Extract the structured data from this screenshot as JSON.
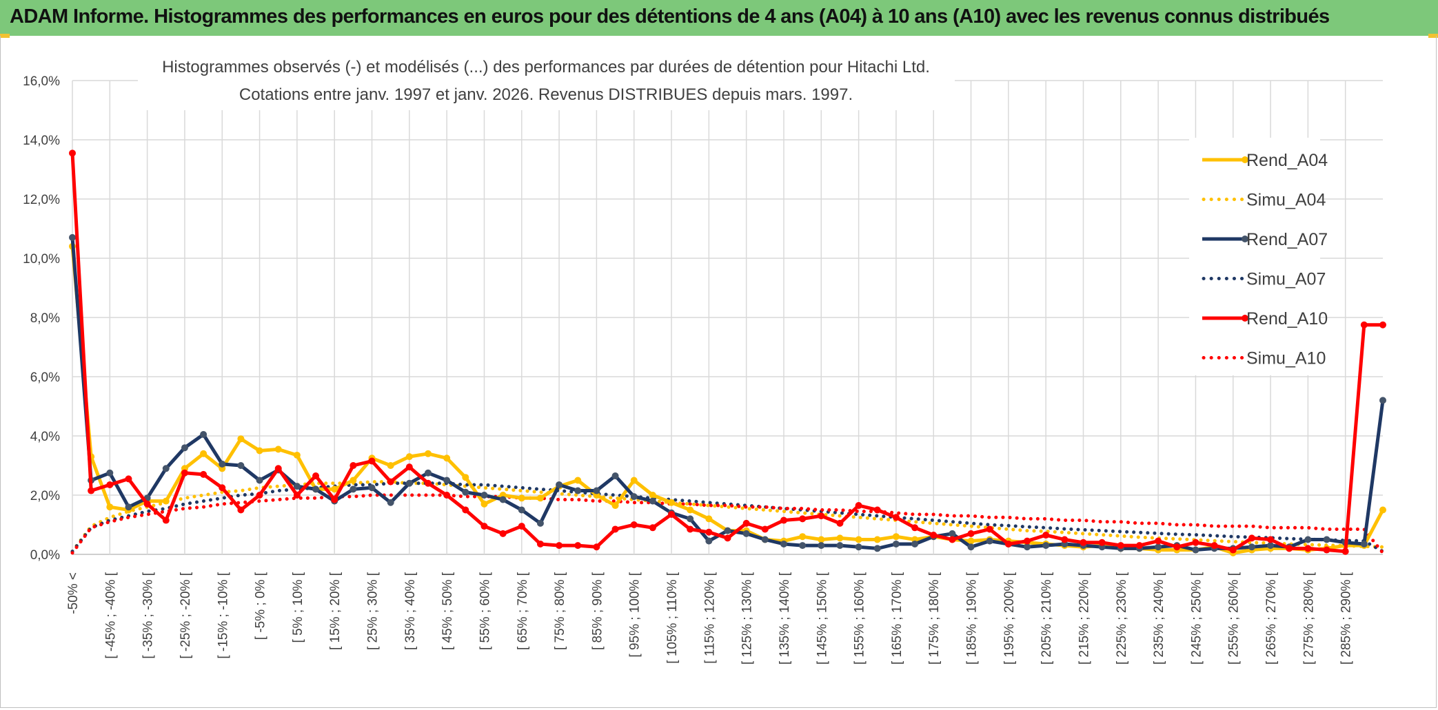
{
  "banner": {
    "title": "ADAM Informe. Histogrammes des performances en euros pour des détentions de 4 ans (A04) à 10 ans (A10) avec les revenus connus distribués"
  },
  "chart_data": {
    "type": "line",
    "title_line1": "Histogrammes observés (-) et modélisés (...) des performances par durées de détention pour Hitachi Ltd.",
    "title_line2": "Cotations entre janv. 1997 et janv. 2026. Revenus DISTRIBUES depuis mars. 1997.",
    "ylim": [
      0,
      16
    ],
    "y_ticks": [
      "0,0%",
      "2,0%",
      "4,0%",
      "6,0%",
      "8,0%",
      "10,0%",
      "12,0%",
      "14,0%",
      "16,0%"
    ],
    "x_tick_labels": [
      "-50% <",
      "[ -45% ; -40% [",
      "[ -35% ; -30% [",
      "[ -25% ; -20% [",
      "[ -15% ; -10% [",
      "[ -5% ; 0% [",
      "[ 5% ; 10% [",
      "[ 15% ; 20% [",
      "[ 25% ; 30% [",
      "[ 35% ; 40% [",
      "[ 45% ; 50% [",
      "[ 55% ; 60% [",
      "[ 65% ; 70% [",
      "[ 75% ; 80% [",
      "[ 85% ; 90% [",
      "[ 95% ; 100% [",
      "[ 105% ; 110% [",
      "[ 115% ; 120% [",
      "[ 125% ; 130% [",
      "[ 135% ; 140% [",
      "[ 145% ; 150% [",
      "[ 155% ; 160% [",
      "[ 165% ; 170% [",
      "[ 175% ; 180% [",
      "[ 185% ; 190% [",
      "[ 195% ; 200% [",
      "[ 205% ; 210% [",
      "[ 215% ; 220% [",
      "[ 225% ; 230% [",
      "[ 235% ; 240% [",
      "[ 245% ; 250% [",
      "[ 255% ; 260% [",
      "[ 265% ; 270% [",
      "[ 275% ; 280% [",
      "[ 285% ; 290% ["
    ],
    "x_label_positions": [
      0,
      2,
      4,
      6,
      8,
      10,
      12,
      14,
      16,
      18,
      20,
      22,
      24,
      26,
      28,
      30,
      32,
      34,
      36,
      38,
      40,
      42,
      44,
      46,
      48,
      50,
      52,
      54,
      56,
      58,
      60,
      62,
      64,
      66,
      68
    ],
    "n_points": 71,
    "series": [
      {
        "name": "Rend_A04",
        "color": "#ffc000",
        "style": "solid",
        "markers": true,
        "values": [
          10.4,
          3.3,
          1.6,
          1.5,
          1.8,
          1.8,
          2.9,
          3.4,
          2.9,
          3.9,
          3.5,
          3.55,
          3.35,
          2.2,
          2.2,
          2.5,
          3.25,
          3.0,
          3.3,
          3.4,
          3.25,
          2.6,
          1.7,
          2.0,
          1.9,
          1.9,
          2.3,
          2.5,
          2.0,
          1.65,
          2.5,
          2.0,
          1.75,
          1.5,
          1.2,
          0.8,
          0.8,
          0.5,
          0.45,
          0.6,
          0.5,
          0.55,
          0.5,
          0.5,
          0.6,
          0.5,
          0.6,
          0.5,
          0.45,
          0.5,
          0.45,
          0.4,
          0.35,
          0.3,
          0.25,
          0.3,
          0.2,
          0.2,
          0.15,
          0.15,
          0.15,
          0.25,
          0.05,
          0.15,
          0.2,
          0.2,
          0.15,
          0.2,
          0.3,
          0.3,
          1.5
        ]
      },
      {
        "name": "Simu_A04",
        "color": "#ffc000",
        "style": "dotted",
        "markers": false,
        "values": [
          0.1,
          0.95,
          1.25,
          1.45,
          1.6,
          1.75,
          1.9,
          2.0,
          2.1,
          2.15,
          2.25,
          2.3,
          2.35,
          2.4,
          2.4,
          2.4,
          2.45,
          2.45,
          2.4,
          2.4,
          2.35,
          2.3,
          2.25,
          2.2,
          2.15,
          2.1,
          2.05,
          2.0,
          1.95,
          1.9,
          1.85,
          1.8,
          1.75,
          1.7,
          1.65,
          1.6,
          1.55,
          1.5,
          1.45,
          1.4,
          1.35,
          1.3,
          1.25,
          1.2,
          1.15,
          1.1,
          1.05,
          1.0,
          0.95,
          0.9,
          0.85,
          0.8,
          0.78,
          0.74,
          0.7,
          0.66,
          0.62,
          0.58,
          0.55,
          0.52,
          0.49,
          0.46,
          0.43,
          0.4,
          0.38,
          0.35,
          0.33,
          0.31,
          0.29,
          0.27,
          0.25
        ]
      },
      {
        "name": "Rend_A07",
        "color": "#1f3864",
        "style": "solid",
        "markers": true,
        "values": [
          10.7,
          2.5,
          2.75,
          1.6,
          1.9,
          2.9,
          3.6,
          4.05,
          3.05,
          3.0,
          2.5,
          2.85,
          2.3,
          2.2,
          1.8,
          2.2,
          2.25,
          1.75,
          2.4,
          2.75,
          2.5,
          2.1,
          2.0,
          1.85,
          1.5,
          1.05,
          2.35,
          2.15,
          2.15,
          2.65,
          1.95,
          1.8,
          1.4,
          1.2,
          0.45,
          0.8,
          0.7,
          0.5,
          0.35,
          0.3,
          0.3,
          0.3,
          0.25,
          0.2,
          0.35,
          0.35,
          0.6,
          0.7,
          0.25,
          0.45,
          0.35,
          0.25,
          0.3,
          0.35,
          0.3,
          0.25,
          0.2,
          0.2,
          0.25,
          0.3,
          0.15,
          0.2,
          0.2,
          0.25,
          0.3,
          0.25,
          0.5,
          0.5,
          0.4,
          0.35,
          5.2
        ]
      },
      {
        "name": "Simu_A07",
        "color": "#1f3864",
        "style": "dotted",
        "markers": false,
        "values": [
          0.1,
          0.9,
          1.15,
          1.3,
          1.45,
          1.55,
          1.7,
          1.8,
          1.9,
          2.0,
          2.05,
          2.15,
          2.2,
          2.25,
          2.3,
          2.35,
          2.35,
          2.4,
          2.4,
          2.4,
          2.4,
          2.35,
          2.35,
          2.3,
          2.25,
          2.2,
          2.15,
          2.1,
          2.05,
          2.0,
          1.95,
          1.9,
          1.85,
          1.8,
          1.75,
          1.7,
          1.65,
          1.6,
          1.55,
          1.5,
          1.45,
          1.4,
          1.35,
          1.3,
          1.25,
          1.2,
          1.15,
          1.1,
          1.05,
          1.0,
          0.97,
          0.93,
          0.9,
          0.86,
          0.83,
          0.8,
          0.77,
          0.74,
          0.71,
          0.68,
          0.66,
          0.63,
          0.6,
          0.58,
          0.56,
          0.53,
          0.51,
          0.49,
          0.47,
          0.45,
          0.1
        ]
      },
      {
        "name": "Rend_A10",
        "color": "#ff0000",
        "style": "solid",
        "markers": true,
        "values": [
          13.55,
          2.15,
          2.35,
          2.55,
          1.7,
          1.15,
          2.75,
          2.7,
          2.25,
          1.5,
          2.0,
          2.9,
          2.0,
          2.65,
          1.85,
          3.0,
          3.15,
          2.45,
          2.95,
          2.4,
          2.0,
          1.5,
          0.95,
          0.7,
          0.95,
          0.35,
          0.3,
          0.3,
          0.25,
          0.85,
          1.0,
          0.9,
          1.35,
          0.85,
          0.75,
          0.55,
          1.05,
          0.85,
          1.15,
          1.2,
          1.3,
          1.05,
          1.65,
          1.5,
          1.25,
          0.9,
          0.65,
          0.5,
          0.7,
          0.85,
          0.35,
          0.45,
          0.65,
          0.5,
          0.4,
          0.4,
          0.3,
          0.3,
          0.45,
          0.25,
          0.4,
          0.3,
          0.15,
          0.55,
          0.5,
          0.2,
          0.2,
          0.15,
          0.1,
          7.75,
          7.75
        ]
      },
      {
        "name": "Simu_A10",
        "color": "#ff0000",
        "style": "dotted",
        "markers": false,
        "values": [
          0.05,
          0.9,
          1.1,
          1.25,
          1.35,
          1.45,
          1.55,
          1.6,
          1.7,
          1.75,
          1.8,
          1.85,
          1.9,
          1.9,
          1.95,
          1.95,
          2.0,
          2.0,
          2.0,
          2.0,
          2.0,
          1.95,
          1.95,
          1.95,
          1.9,
          1.9,
          1.85,
          1.85,
          1.8,
          1.8,
          1.75,
          1.75,
          1.7,
          1.7,
          1.65,
          1.65,
          1.6,
          1.6,
          1.55,
          1.55,
          1.5,
          1.5,
          1.45,
          1.45,
          1.4,
          1.35,
          1.35,
          1.3,
          1.3,
          1.25,
          1.25,
          1.2,
          1.2,
          1.15,
          1.15,
          1.1,
          1.1,
          1.05,
          1.05,
          1.0,
          1.0,
          0.95,
          0.95,
          0.95,
          0.9,
          0.9,
          0.9,
          0.85,
          0.85,
          0.85,
          0.05
        ]
      }
    ]
  }
}
